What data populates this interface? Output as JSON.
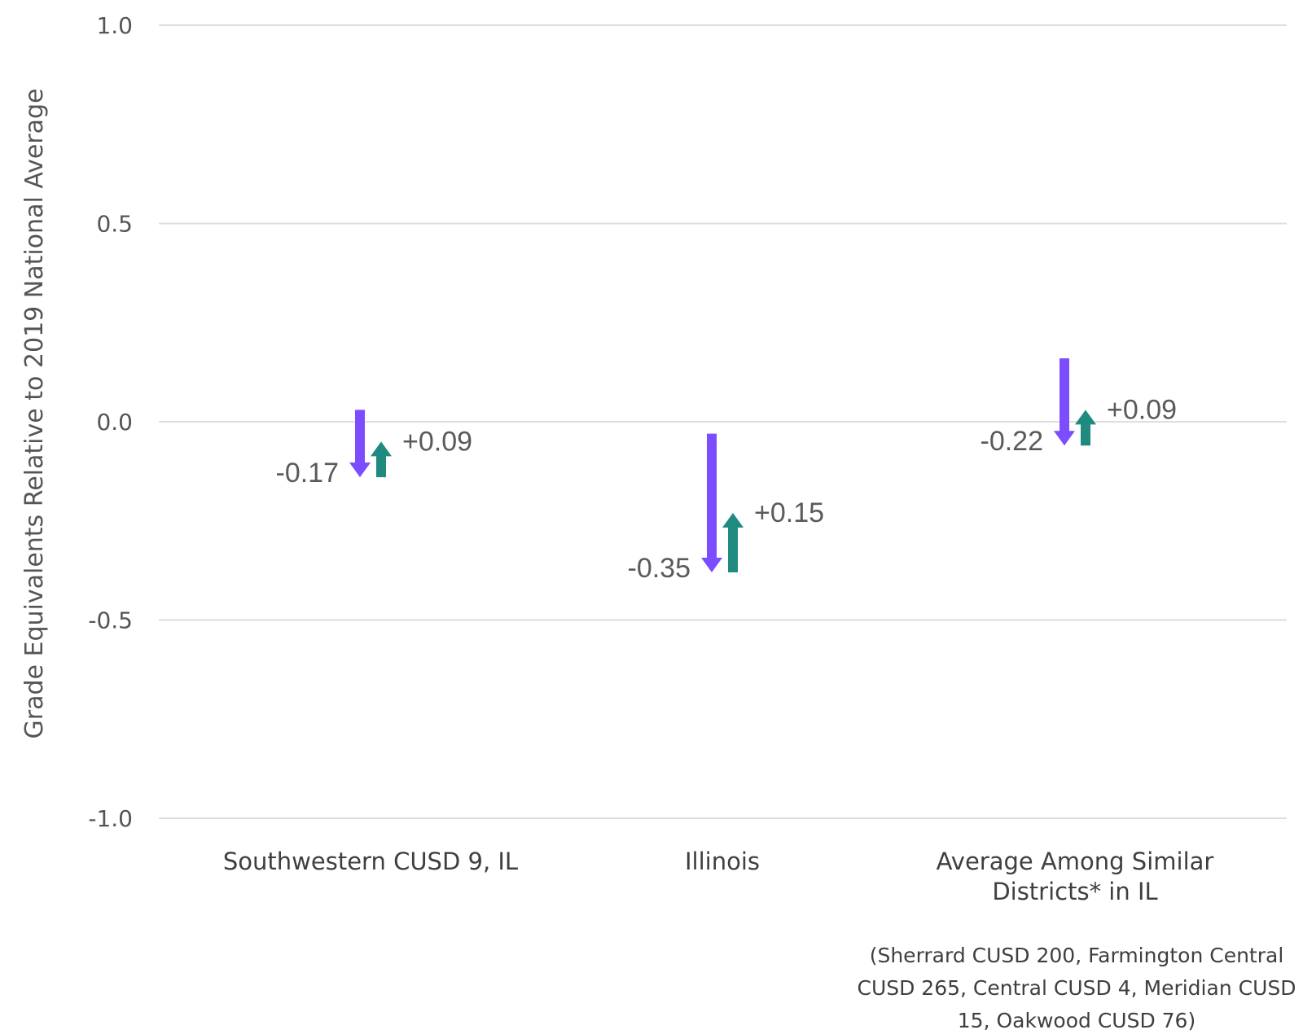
{
  "chart_data": {
    "type": "arrow",
    "ylabel": "Grade Equivalents Relative to 2019 National Average",
    "ylim": [
      -1.0,
      1.0
    ],
    "yticks": [
      {
        "value": 1.0,
        "label": "1.0"
      },
      {
        "value": 0.5,
        "label": "0.5"
      },
      {
        "value": 0.0,
        "label": "0.0"
      },
      {
        "value": -0.5,
        "label": "-0.5"
      },
      {
        "value": -1.0,
        "label": "-1.0"
      }
    ],
    "grid": true,
    "colors": {
      "decline": "#7c4dff",
      "recovery": "#1f8a80"
    },
    "categories": [
      {
        "name_lines": [
          "Southwestern CUSD 9, IL"
        ],
        "decline": {
          "from": 0.03,
          "to": -0.14,
          "label": "-0.17"
        },
        "recovery": {
          "from": -0.14,
          "to": -0.05,
          "label": "+0.09"
        }
      },
      {
        "name_lines": [
          "Illinois"
        ],
        "decline": {
          "from": -0.03,
          "to": -0.38,
          "label": "-0.35"
        },
        "recovery": {
          "from": -0.38,
          "to": -0.23,
          "label": "+0.15"
        }
      },
      {
        "name_lines": [
          "Average Among Similar",
          "Districts* in IL"
        ],
        "decline": {
          "from": 0.16,
          "to": -0.06,
          "label": "-0.22"
        },
        "recovery": {
          "from": -0.06,
          "to": 0.03,
          "label": "+0.09"
        }
      }
    ],
    "footnote_lines": [
      "(Sherrard CUSD 200, Farmington Central",
      "CUSD 265, Central CUSD 4, Meridian CUSD",
      "15, Oakwood CUSD 76)"
    ]
  }
}
